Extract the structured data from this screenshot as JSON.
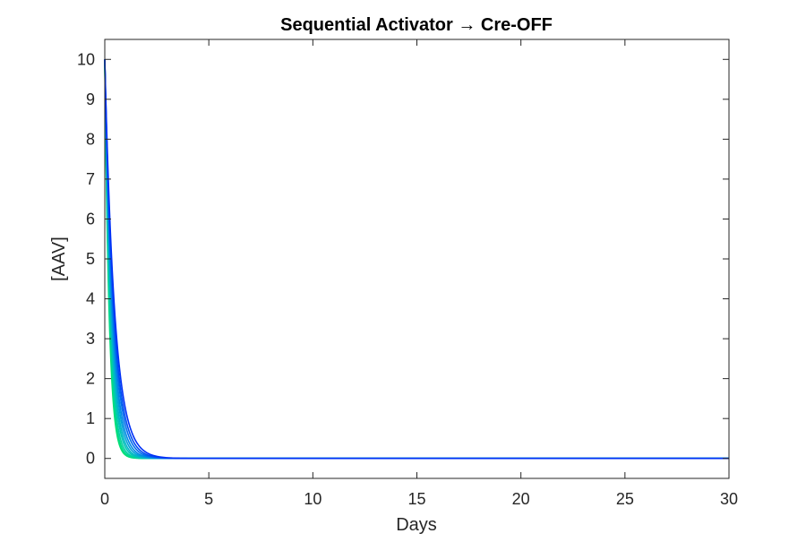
{
  "chart_data": {
    "type": "line",
    "title": "Sequential Activator → Cre-OFF",
    "xlabel": "Days",
    "ylabel": "[AAV]",
    "xlim": [
      0,
      30
    ],
    "ylim": [
      -0.5,
      10.5
    ],
    "xticks": [
      0,
      5,
      10,
      15,
      20,
      25,
      30
    ],
    "yticks": [
      0,
      1,
      2,
      3,
      4,
      5,
      6,
      7,
      8,
      9,
      10
    ],
    "x_tick_labels": [
      "0",
      "5",
      "10",
      "15",
      "20",
      "25",
      "30"
    ],
    "y_tick_labels": [
      "0",
      "1",
      "2",
      "3",
      "4",
      "5",
      "6",
      "7",
      "8",
      "9",
      "10"
    ],
    "grid": false,
    "legend": "none",
    "series": [
      {
        "initial_value": 10,
        "decay_rate_per_day": 4.8,
        "color": "#00e072"
      },
      {
        "initial_value": 10,
        "decay_rate_per_day": 4.4,
        "color": "#00d98a"
      },
      {
        "initial_value": 10,
        "decay_rate_per_day": 4.0,
        "color": "#00d0a0"
      },
      {
        "initial_value": 10,
        "decay_rate_per_day": 3.6,
        "color": "#00c4b5"
      },
      {
        "initial_value": 10,
        "decay_rate_per_day": 3.3,
        "color": "#00b4c8"
      },
      {
        "initial_value": 10,
        "decay_rate_per_day": 3.0,
        "color": "#00a0d8"
      },
      {
        "initial_value": 10,
        "decay_rate_per_day": 2.75,
        "color": "#0088e4"
      },
      {
        "initial_value": 10,
        "decay_rate_per_day": 2.5,
        "color": "#006cec"
      },
      {
        "initial_value": 10,
        "decay_rate_per_day": 2.3,
        "color": "#004ef2"
      },
      {
        "initial_value": 10,
        "decay_rate_per_day": 2.1,
        "color": "#0030f6"
      }
    ]
  }
}
